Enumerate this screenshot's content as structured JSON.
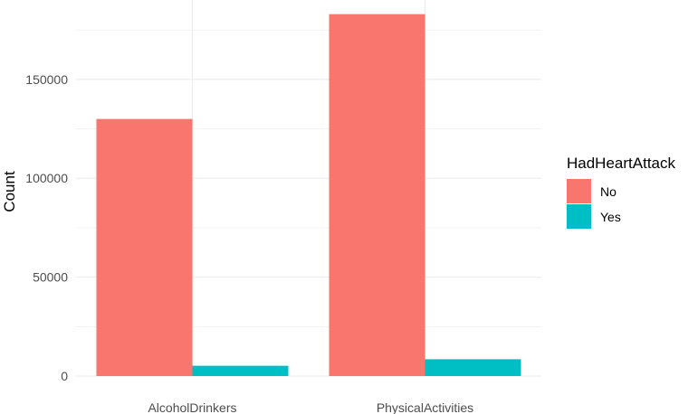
{
  "chart_data": {
    "type": "bar",
    "categories": [
      "AlcoholDrinkers",
      "PhysicalActivities"
    ],
    "series": [
      {
        "name": "No",
        "values": [
          130000,
          183000
        ],
        "color": "#F8766D"
      },
      {
        "name": "Yes",
        "values": [
          5200,
          8500
        ],
        "color": "#00BFC4"
      }
    ],
    "ylabel": "Count",
    "xlabel": "",
    "ylim": [
      0,
      185000
    ],
    "y_ticks": [
      0,
      50000,
      100000,
      150000
    ],
    "y_tick_labels": [
      "0",
      "50000",
      "100000",
      "150000"
    ],
    "legend": {
      "title": "HadHeartAttack",
      "position": "right"
    },
    "grid": true
  }
}
